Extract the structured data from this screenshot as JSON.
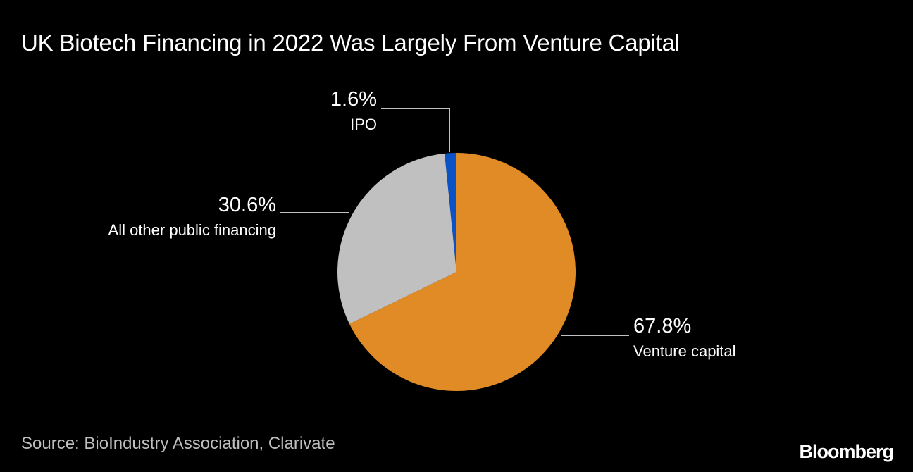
{
  "title": "UK Biotech Financing in 2022 Was Largely From Venture Capital",
  "source": "Source: BioIndustry Association, Clarivate",
  "logo": "Bloomberg",
  "chart_data": {
    "type": "pie",
    "title": "UK Biotech Financing in 2022 Was Largely From Venture Capital",
    "slices": [
      {
        "label": "IPO",
        "value": 1.6,
        "display": "1.6%",
        "color": "#0b52c6"
      },
      {
        "label": "Venture capital",
        "value": 67.8,
        "display": "67.8%",
        "color": "#e08b26"
      },
      {
        "label": "All other public financing",
        "value": 30.6,
        "display": "30.6%",
        "color": "#c0c0c0"
      }
    ]
  }
}
